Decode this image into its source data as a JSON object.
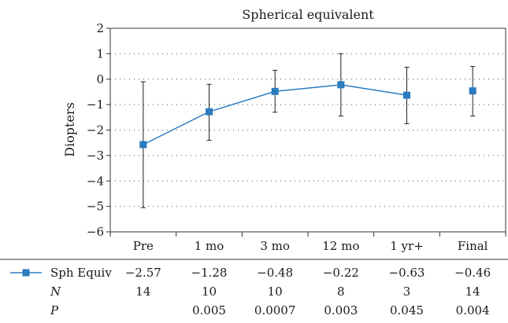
{
  "chart_data": {
    "type": "line",
    "title": "Spherical equivalent",
    "xlabel": "",
    "ylabel": "Diopters",
    "categories": [
      "Pre",
      "1 mo",
      "3 mo",
      "12 mo",
      "1 yr+",
      "Final"
    ],
    "ylim": [
      -6,
      2
    ],
    "yticks": [
      2,
      1,
      0,
      -1,
      -2,
      -3,
      -4,
      -5,
      -6
    ],
    "ytick_labels": [
      "2",
      "1",
      "0",
      "−1",
      "−2",
      "−3",
      "−4",
      "−5",
      "−6"
    ],
    "grid": "horizontal-dotted",
    "series": [
      {
        "name": "Sph Equiv",
        "color": "#2b7bbf",
        "marker": "square",
        "values": [
          -2.57,
          -1.28,
          -0.48,
          -0.22,
          -0.63,
          -0.46
        ],
        "error_low": [
          -5.05,
          -2.4,
          -1.3,
          -1.45,
          -1.75,
          -1.45
        ],
        "error_high": [
          -0.1,
          -0.2,
          0.35,
          1.0,
          0.47,
          0.5
        ],
        "connected": [
          true,
          true,
          true,
          true,
          true,
          false
        ]
      }
    ]
  },
  "table": {
    "rows": [
      {
        "label": "Sph Equiv",
        "has_marker": true,
        "values": [
          "−2.57",
          "−1.28",
          "−0.48",
          "−0.22",
          "−0.63",
          "−0.46"
        ]
      },
      {
        "label": "N",
        "italic": true,
        "values": [
          "14",
          "10",
          "10",
          "8",
          "3",
          "14"
        ]
      },
      {
        "label": "P",
        "italic": true,
        "values": [
          "",
          "0.005",
          "0.0007",
          "0.003",
          "0.045",
          "0.004"
        ]
      }
    ]
  }
}
